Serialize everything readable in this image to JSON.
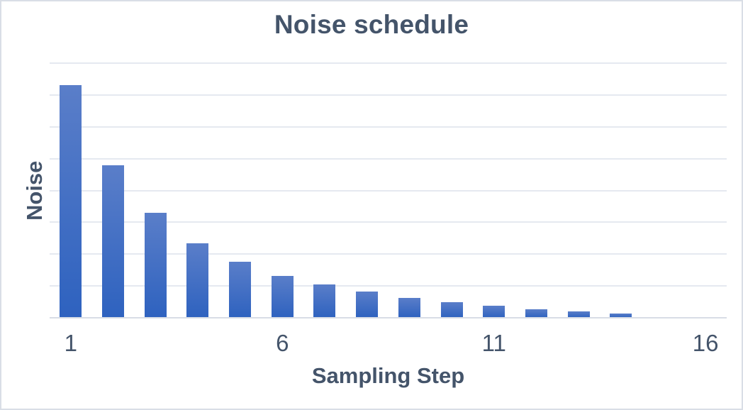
{
  "chart_data": {
    "type": "bar",
    "title": "Noise schedule",
    "xlabel": "Sampling Step",
    "ylabel": "Noise",
    "categories": [
      1,
      2,
      3,
      4,
      5,
      6,
      7,
      8,
      9,
      10,
      11,
      12,
      13,
      14,
      15,
      16
    ],
    "values": [
      14.6,
      9.6,
      6.6,
      4.7,
      3.5,
      2.65,
      2.1,
      1.65,
      1.25,
      1.0,
      0.78,
      0.55,
      0.4,
      0.25,
      0,
      0
    ],
    "x_tick_labels": [
      "1",
      "6",
      "11",
      "16"
    ],
    "x_tick_positions": [
      1,
      6,
      11,
      16
    ],
    "ylim": [
      0,
      16
    ],
    "gridline_interval": 2,
    "y_tick_labels_shown": false,
    "grid": "horizontal",
    "legend": "none",
    "colors": {
      "bar_gradient_top": "#5a7ec9",
      "bar_gradient_bottom": "#2e62bf",
      "text": "#44546a",
      "gridline": "#e5e9f0",
      "axis_line": "#d8dde6",
      "card_border": "#d9dee6",
      "background": "#ffffff"
    }
  }
}
